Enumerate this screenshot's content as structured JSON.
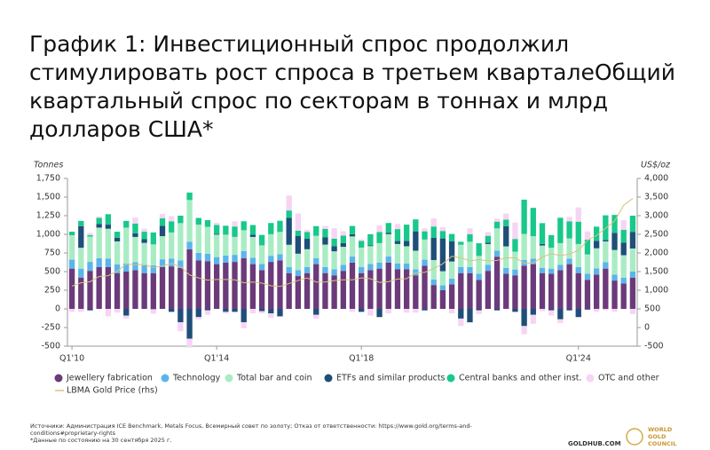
{
  "chart_data": {
    "type": "stacked-bar-line",
    "title": "График 1: Инвестиционный спрос продолжил стимулировать рост спроса в третьем кварталеОбщий квартальный спрос по секторам в тоннах и млрд долларов США*",
    "y_label": "Tonnes",
    "y2_label": "US$/oz",
    "categories": [
      "Q1'10",
      null,
      null,
      null,
      null,
      null,
      null,
      null,
      null,
      null,
      null,
      null,
      null,
      null,
      null,
      null,
      "Q1'14",
      null,
      null,
      null,
      null,
      null,
      null,
      null,
      null,
      null,
      null,
      null,
      null,
      null,
      null,
      null,
      "Q1'18",
      null,
      null,
      null,
      null,
      null,
      null,
      null,
      null,
      null,
      null,
      null,
      null,
      null,
      null,
      null,
      null,
      null,
      null,
      null,
      null,
      null,
      null,
      null,
      "Q1'24",
      null,
      null,
      null,
      null,
      null,
      null
    ],
    "ylim": [
      -500,
      1750
    ],
    "yticks": [
      {
        "value": 1750,
        "label": "1,750"
      },
      {
        "value": 1500,
        "label": "1,500"
      },
      {
        "value": 1250,
        "label": "1,250"
      },
      {
        "value": 1000,
        "label": "1,000"
      },
      750,
      500,
      250,
      0,
      -250,
      -500
    ],
    "y2lim": [
      -500,
      4000
    ],
    "y2ticks": [
      {
        "value": 4000,
        "label": "4,000"
      },
      {
        "value": 3500,
        "label": "3,500"
      },
      {
        "value": 3000,
        "label": "3,000"
      },
      {
        "value": 2500,
        "label": "2,500"
      },
      {
        "value": 2000,
        "label": "2,000"
      },
      {
        "value": 1500,
        "label": "1,500"
      },
      {
        "value": 1000,
        "label": "1,000"
      },
      500,
      0,
      -500
    ],
    "series": [
      {
        "name": "Jewellery fabrication",
        "color": "#6b3a7a",
        "values": [
          540,
          420,
          510,
          560,
          560,
          480,
          500,
          520,
          480,
          480,
          560,
          570,
          550,
          800,
          650,
          640,
          600,
          620,
          630,
          680,
          600,
          520,
          630,
          650,
          480,
          440,
          480,
          600,
          480,
          450,
          510,
          620,
          480,
          520,
          540,
          620,
          530,
          530,
          450,
          580,
          320,
          250,
          330,
          480,
          480,
          390,
          510,
          700,
          470,
          450,
          580,
          600,
          480,
          470,
          520,
          600,
          480,
          390,
          460,
          540,
          380,
          340,
          420
        ]
      },
      {
        "name": "Technology",
        "color": "#5bb5ea",
        "values": [
          120,
          120,
          120,
          120,
          115,
          115,
          110,
          105,
          105,
          105,
          105,
          105,
          100,
          100,
          100,
          100,
          95,
          95,
          95,
          95,
          85,
          82,
          82,
          82,
          80,
          80,
          80,
          80,
          82,
          82,
          82,
          82,
          82,
          82,
          82,
          82,
          80,
          80,
          80,
          80,
          75,
          65,
          75,
          80,
          80,
          80,
          80,
          80,
          78,
          78,
          75,
          75,
          70,
          70,
          72,
          75,
          80,
          80,
          83,
          85,
          80,
          80,
          80
        ]
      },
      {
        "name": "Total bar and coin",
        "color": "#a9ecc4",
        "values": [
          330,
          280,
          340,
          410,
          400,
          310,
          480,
          340,
          300,
          280,
          310,
          350,
          500,
          560,
          380,
          360,
          300,
          280,
          240,
          280,
          280,
          250,
          290,
          300,
          300,
          220,
          240,
          300,
          300,
          240,
          240,
          270,
          260,
          240,
          260,
          300,
          260,
          230,
          250,
          270,
          260,
          190,
          230,
          300,
          340,
          240,
          280,
          300,
          290,
          240,
          350,
          300,
          300,
          280,
          290,
          270,
          310,
          260,
          270,
          280,
          330,
          300,
          310
        ]
      },
      {
        "name": "ETFs and similar products",
        "color": "#1f4e79",
        "values": [
          5,
          290,
          -20,
          50,
          55,
          50,
          -90,
          50,
          50,
          -5,
          140,
          -40,
          -180,
          -400,
          -110,
          -20,
          10,
          -40,
          -40,
          -180,
          30,
          -30,
          -60,
          -100,
          360,
          240,
          140,
          -80,
          100,
          70,
          50,
          30,
          -40,
          10,
          -110,
          20,
          40,
          70,
          260,
          -20,
          300,
          440,
          270,
          -130,
          -180,
          -20,
          20,
          -20,
          270,
          -40,
          -230,
          -80,
          20,
          -20,
          -140,
          -20,
          -110,
          -10,
          100,
          20,
          230,
          170,
          220
        ]
      },
      {
        "name": "Central banks and other inst.",
        "color": "#19c88b",
        "values": [
          40,
          70,
          20,
          80,
          140,
          80,
          90,
          130,
          100,
          160,
          100,
          150,
          100,
          100,
          90,
          90,
          120,
          120,
          140,
          120,
          130,
          140,
          150,
          150,
          100,
          70,
          90,
          130,
          110,
          100,
          100,
          110,
          90,
          150,
          150,
          130,
          160,
          220,
          160,
          110,
          150,
          100,
          100,
          40,
          100,
          170,
          90,
          90,
          90,
          170,
          460,
          380,
          280,
          170,
          340,
          230,
          300,
          200,
          190,
          330,
          240,
          170,
          220
        ]
      },
      {
        "name": "OTC and other",
        "color": "#f7d4f4",
        "values": [
          -40,
          -40,
          30,
          20,
          -100,
          -50,
          -40,
          80,
          40,
          -60,
          60,
          70,
          -120,
          -120,
          -30,
          -60,
          30,
          -20,
          70,
          -80,
          -60,
          -30,
          -60,
          -10,
          200,
          230,
          30,
          -50,
          40,
          140,
          60,
          -40,
          20,
          -90,
          90,
          -60,
          70,
          -50,
          -50,
          40,
          110,
          50,
          -60,
          -100,
          80,
          -50,
          50,
          40,
          80,
          220,
          -110,
          -120,
          -30,
          -70,
          -50,
          60,
          190,
          110,
          -40,
          -20,
          -40,
          130,
          -70
        ]
      },
      {
        "name": "LBMA Gold Price (rhs)",
        "color": "#d8c37e",
        "axis": "y2",
        "values": [
          1110,
          1200,
          1230,
          1370,
          1390,
          1510,
          1700,
          1690,
          1690,
          1610,
          1650,
          1720,
          1630,
          1410,
          1330,
          1270,
          1290,
          1290,
          1280,
          1200,
          1220,
          1190,
          1120,
          1100,
          1180,
          1260,
          1330,
          1220,
          1220,
          1260,
          1280,
          1280,
          1330,
          1310,
          1210,
          1230,
          1300,
          1310,
          1470,
          1480,
          1580,
          1710,
          1910,
          1870,
          1790,
          1820,
          1790,
          1800,
          1870,
          1870,
          1730,
          1730,
          1890,
          1980,
          1930,
          1970,
          2070,
          2340,
          2470,
          2660,
          2860,
          3280,
          3460
        ]
      }
    ],
    "sources": [
      "Источники: Администрация ICE Benchmark, Metals Focus, Всемирный совет по золоту; Отказ от ответственности: https://www.gold.org/terms-and-",
      "conditions#proprietary-rights",
      "*Данные по состоянию на 30 сентября 2025 г."
    ],
    "site": "GOLDHUB.COM",
    "logo": [
      "WORLD",
      "GOLD",
      "COUNCIL"
    ]
  }
}
